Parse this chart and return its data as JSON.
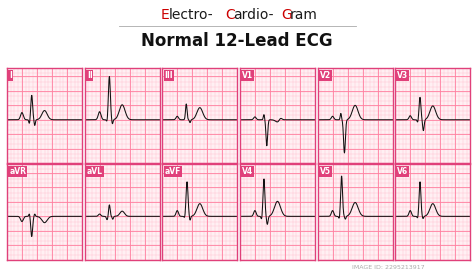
{
  "title1": "Electro-Cardio-Gram",
  "title2": "Normal 12-Lead ECG",
  "bg_color": "#ffffff",
  "grid_bg": "#fff0f3",
  "grid_color_fine": "#ffb3c6",
  "grid_color_bold": "#ff80a0",
  "border_color": "#e0407a",
  "label_bg": "#e0407a",
  "label_color": "#ffffff",
  "ecg_color": "#111111",
  "leads": [
    "I",
    "II",
    "III",
    "V1",
    "V2",
    "V3",
    "aVR",
    "aVL",
    "aVF",
    "V4",
    "V5",
    "V6"
  ],
  "footer_color": "#2d2d2d",
  "title1_color": "#1a1a1a",
  "title1_red": "#cc0000",
  "segments": [
    [
      "E",
      "#cc0000"
    ],
    [
      "lectro-",
      "#1a1a1a"
    ],
    [
      "C",
      "#cc0000"
    ],
    [
      "ardio-",
      "#1a1a1a"
    ],
    [
      "G",
      "#cc0000"
    ],
    [
      "ram",
      "#1a1a1a"
    ]
  ]
}
